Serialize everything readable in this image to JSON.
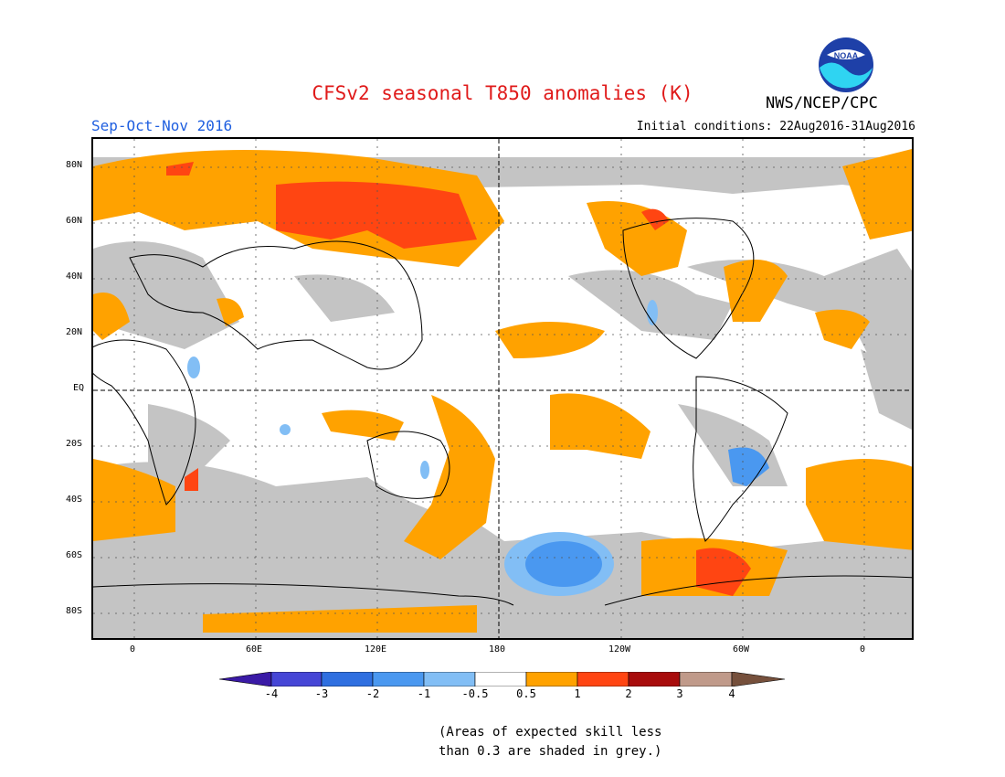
{
  "header": {
    "title": "CFSv2 seasonal T850 anomalies (K)",
    "period": "Sep-Oct-Nov 2016",
    "initial_conditions": "Initial conditions: 22Aug2016-31Aug2016",
    "org": "NWS/NCEP/CPC",
    "logo_text": "NOAA"
  },
  "map": {
    "lat_labels": [
      "80N",
      "60N",
      "40N",
      "20N",
      "EQ",
      "20S",
      "40S",
      "60S",
      "80S"
    ],
    "lon_labels": [
      "0",
      "60E",
      "120E",
      "180",
      "120W",
      "60W",
      "0"
    ],
    "skill_grey_color": "#c4c4c4"
  },
  "colorbar": {
    "labels": [
      "-4",
      "-3",
      "-2",
      "-1",
      "-0.5",
      "0.5",
      "1",
      "2",
      "3",
      "4"
    ],
    "colors": [
      "#3a1aa6",
      "#4646d6",
      "#2f6fe0",
      "#4a98f0",
      "#82bef5",
      "#ffffff",
      "#ffa200",
      "#ff4512",
      "#a80c0c",
      "#c09a8a",
      "#76503c"
    ]
  },
  "note": {
    "line1": "(Areas of expected skill less",
    "line2": "than 0.3 are shaded in grey.)"
  }
}
